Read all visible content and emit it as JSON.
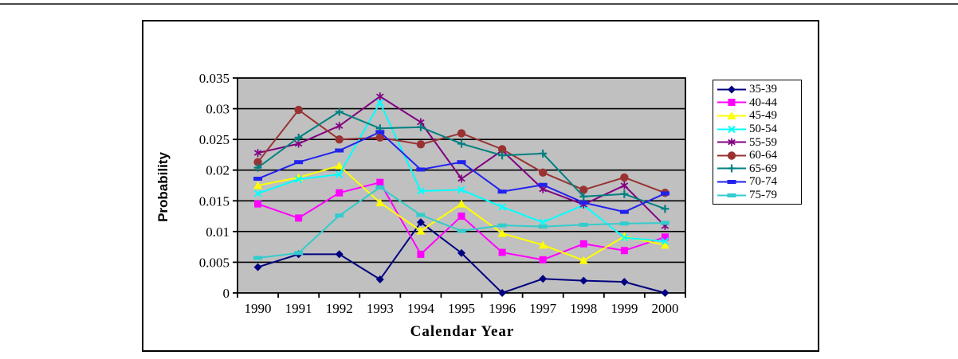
{
  "chart_data": {
    "type": "line",
    "title": "",
    "xlabel": "Calendar Year",
    "ylabel": "Probability",
    "x_categories": [
      "1990",
      "1991",
      "1992",
      "1993",
      "1994",
      "1995",
      "1996",
      "1997",
      "1998",
      "1999",
      "2000"
    ],
    "ylim": [
      0,
      0.035
    ],
    "ytick_step": 0.005,
    "ytick_labels": [
      "0",
      "0.005",
      "0.01",
      "0.015",
      "0.02",
      "0.025",
      "0.03",
      "0.035"
    ],
    "grid": true,
    "plot_bg_color": "#c0c0c0",
    "gridline_color": "#000000",
    "legend_position": "right",
    "series": [
      {
        "name": "35-39",
        "color": "#000080",
        "marker": "diamond",
        "values": [
          0.0042,
          0.0063,
          0.0063,
          0.0022,
          0.0115,
          0.0065,
          0.0,
          0.0023,
          0.002,
          0.0018,
          0.0
        ]
      },
      {
        "name": "40-44",
        "color": "#ff00ff",
        "marker": "square",
        "values": [
          0.0145,
          0.0122,
          0.0163,
          0.018,
          0.0063,
          0.0125,
          0.0066,
          0.0054,
          0.008,
          0.0069,
          0.0091
        ]
      },
      {
        "name": "45-49",
        "color": "#ffff00",
        "marker": "triangle",
        "values": [
          0.0175,
          0.0188,
          0.0207,
          0.0147,
          0.0101,
          0.0145,
          0.0097,
          0.0078,
          0.0053,
          0.0092,
          0.0078
        ]
      },
      {
        "name": "50-54",
        "color": "#00ffff",
        "marker": "x",
        "values": [
          0.0162,
          0.0185,
          0.0193,
          0.031,
          0.0166,
          0.0168,
          0.014,
          0.0115,
          0.0143,
          0.009,
          0.0084
        ]
      },
      {
        "name": "55-59",
        "color": "#800080",
        "marker": "star",
        "values": [
          0.0228,
          0.0243,
          0.0272,
          0.032,
          0.0278,
          0.0186,
          0.0232,
          0.0169,
          0.0144,
          0.0175,
          0.0109
        ]
      },
      {
        "name": "60-64",
        "color": "#993333",
        "marker": "circle",
        "values": [
          0.0213,
          0.0298,
          0.025,
          0.0253,
          0.0242,
          0.026,
          0.0234,
          0.0196,
          0.0168,
          0.0188,
          0.0163
        ]
      },
      {
        "name": "65-69",
        "color": "#008080",
        "marker": "plus",
        "values": [
          0.0204,
          0.0253,
          0.0295,
          0.0268,
          0.027,
          0.0243,
          0.0224,
          0.0227,
          0.0157,
          0.0161,
          0.0137
        ]
      },
      {
        "name": "70-74",
        "color": "#2222ee",
        "marker": "dash",
        "values": [
          0.0186,
          0.0213,
          0.0232,
          0.0262,
          0.0201,
          0.0213,
          0.0165,
          0.0176,
          0.0147,
          0.0132,
          0.0162
        ]
      },
      {
        "name": "75-79",
        "color": "#33cccc",
        "marker": "dash",
        "values": [
          0.0057,
          0.0065,
          0.0126,
          0.0172,
          0.0127,
          0.0101,
          0.011,
          0.0108,
          0.0111,
          0.0113,
          0.0114
        ]
      }
    ]
  }
}
